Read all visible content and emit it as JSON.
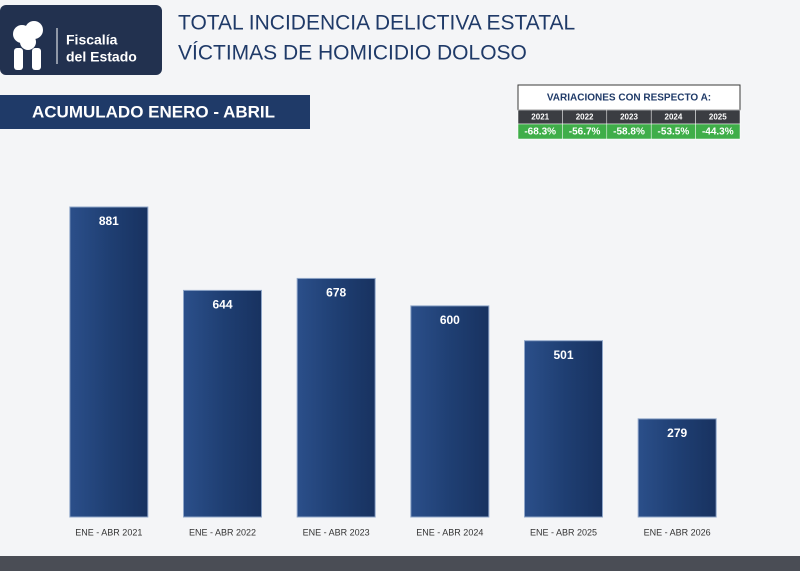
{
  "logo": {
    "line1": "Fiscalía",
    "line2": "del Estado"
  },
  "header": {
    "title_line1": "TOTAL INCIDENCIA DELICTIVA ESTATAL",
    "title_line2": "VÍCTIMAS DE HOMICIDIO DOLOSO"
  },
  "banner": "ACUMULADO ENERO - ABRIL",
  "variations": {
    "title": "VARIACIONES CON RESPECTO A:",
    "years": [
      "2021",
      "2022",
      "2023",
      "2024",
      "2025"
    ],
    "cells": [
      "-68.3%",
      "-56.7%",
      "-58.8%",
      "-53.5%",
      "-44.3%"
    ]
  },
  "chart_data": {
    "type": "bar",
    "categories": [
      "ENE - ABR 2021",
      "ENE - ABR 2022",
      "ENE - ABR 2023",
      "ENE - ABR 2024",
      "ENE - ABR 2025",
      "ENE - ABR 2026"
    ],
    "values": [
      881,
      644,
      678,
      600,
      501,
      279
    ],
    "color": "#1f3f73"
  }
}
